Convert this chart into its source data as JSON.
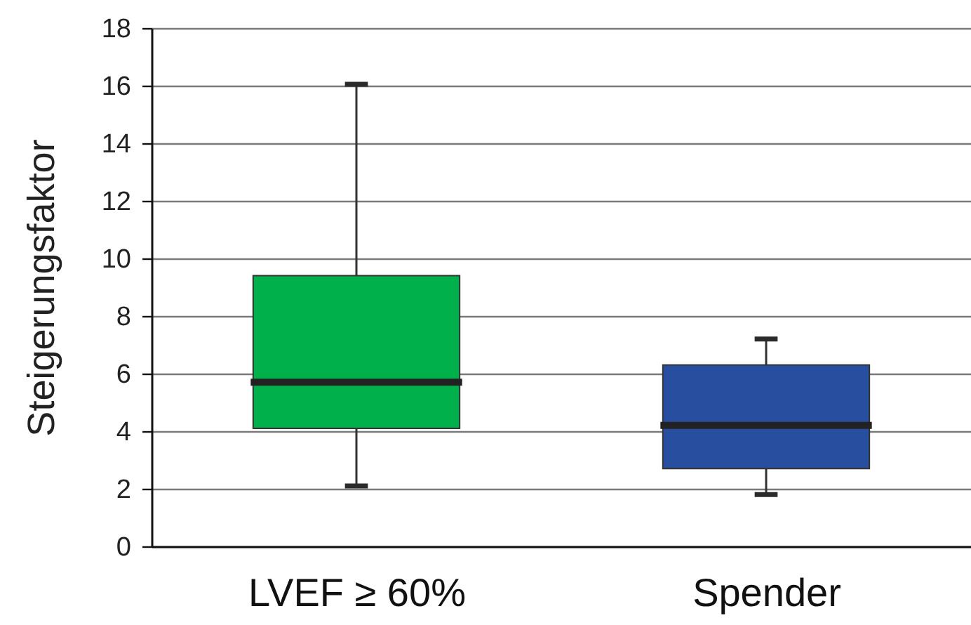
{
  "chart_data": {
    "type": "box",
    "ylabel": "Steigerungsfaktor",
    "categories": [
      "LVEF ≥ 60%",
      "Spender"
    ],
    "boxes": [
      {
        "low": 2.1,
        "q1": 4.1,
        "median": 5.7,
        "q3": 9.4,
        "high": 16.05
      },
      {
        "low": 1.8,
        "q1": 2.7,
        "median": 4.2,
        "q3": 6.3,
        "high": 7.2
      }
    ],
    "colors": [
      "#00b04a",
      "#284e9f"
    ],
    "ylim": [
      0,
      18
    ],
    "yticks": [
      0,
      2,
      4,
      6,
      8,
      10,
      12,
      14,
      16,
      18
    ],
    "grid": "y"
  }
}
